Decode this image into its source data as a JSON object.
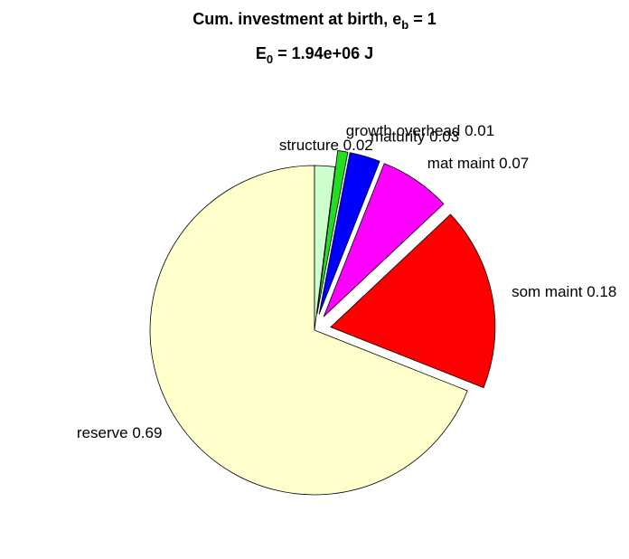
{
  "chart_data": {
    "type": "pie",
    "title": [
      [
        "Cum. investment at birth, e",
        "b",
        " = 1"
      ],
      [
        "E",
        "0",
        " = 1.94e+06 J"
      ]
    ],
    "labels": [
      "reserve 0.69",
      "som maint 0.18",
      "mat maint 0.07",
      "maturity 0.03",
      "growth overhead 0.01",
      "structure 0.02"
    ],
    "values": [
      0.69,
      0.18,
      0.07,
      0.03,
      0.01,
      0.02
    ],
    "colors": [
      "#ffffcc",
      "#ff0000",
      "#ff00ff",
      "#0000ff",
      "#22dd22",
      "#ccffcc"
    ],
    "explode": [
      false,
      true,
      true,
      true,
      true,
      false
    ]
  }
}
